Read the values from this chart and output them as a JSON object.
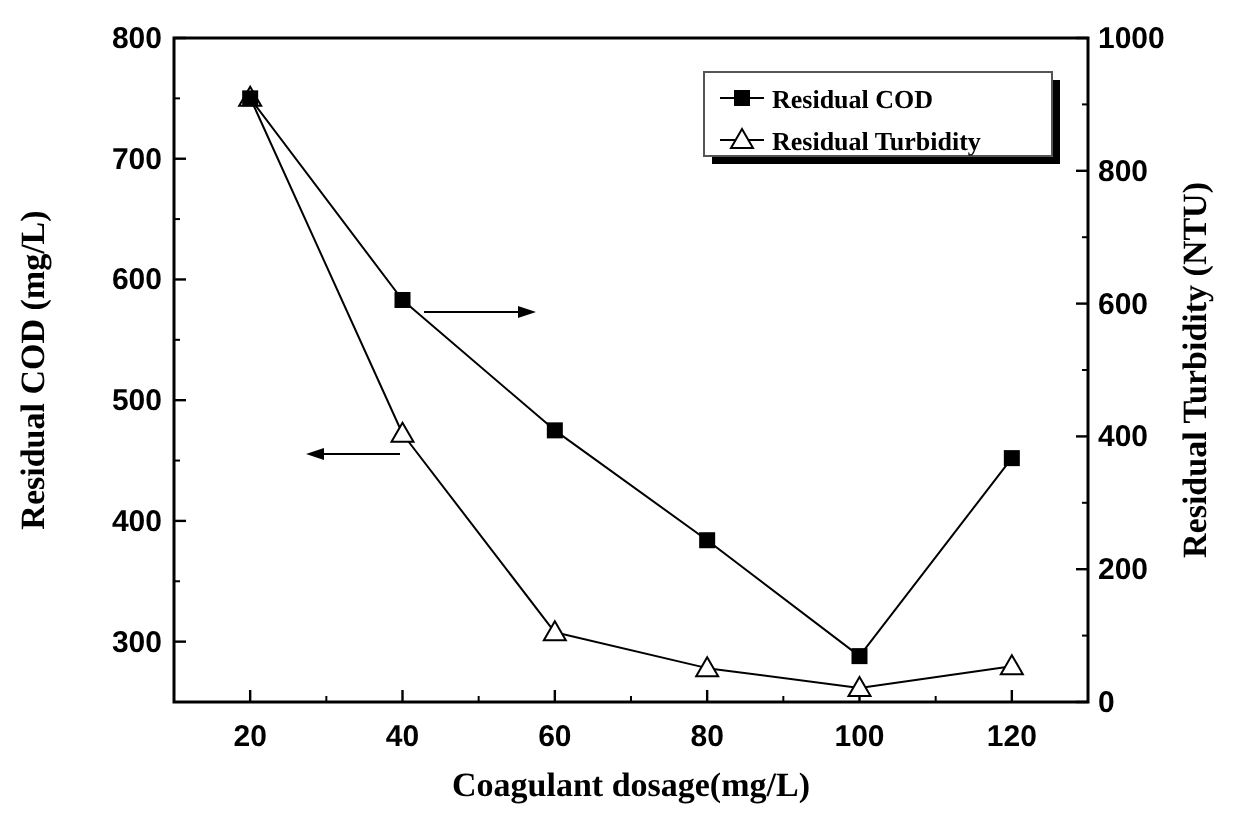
{
  "chart_data": {
    "type": "line",
    "xlabel": "Coagulant dosage(mg/L)",
    "ylabel": "Residual COD (mg/L)",
    "y2label": "Residual Turbidity (NTU)",
    "x": [
      20,
      40,
      60,
      80,
      100,
      120
    ],
    "xlim": [
      10,
      130
    ],
    "xticks": [
      20,
      40,
      60,
      80,
      100,
      120
    ],
    "ylim": [
      250,
      800
    ],
    "yticks": [
      300,
      400,
      500,
      600,
      700,
      800
    ],
    "y2lim": [
      0,
      1000
    ],
    "y2ticks": [
      0,
      200,
      400,
      600,
      800,
      1000
    ],
    "legend": "top right",
    "grid": false,
    "series": [
      {
        "name": "Residual COD",
        "color": "#000000",
        "marker": "square",
        "values": [
          750,
          583,
          475,
          384,
          288,
          452
        ]
      },
      {
        "name": "Residual Turbidity",
        "color": "#000000",
        "marker": "triangle",
        "axis": "y2",
        "values": [
          910,
          404,
          105,
          51,
          21,
          54
        ]
      }
    ]
  }
}
